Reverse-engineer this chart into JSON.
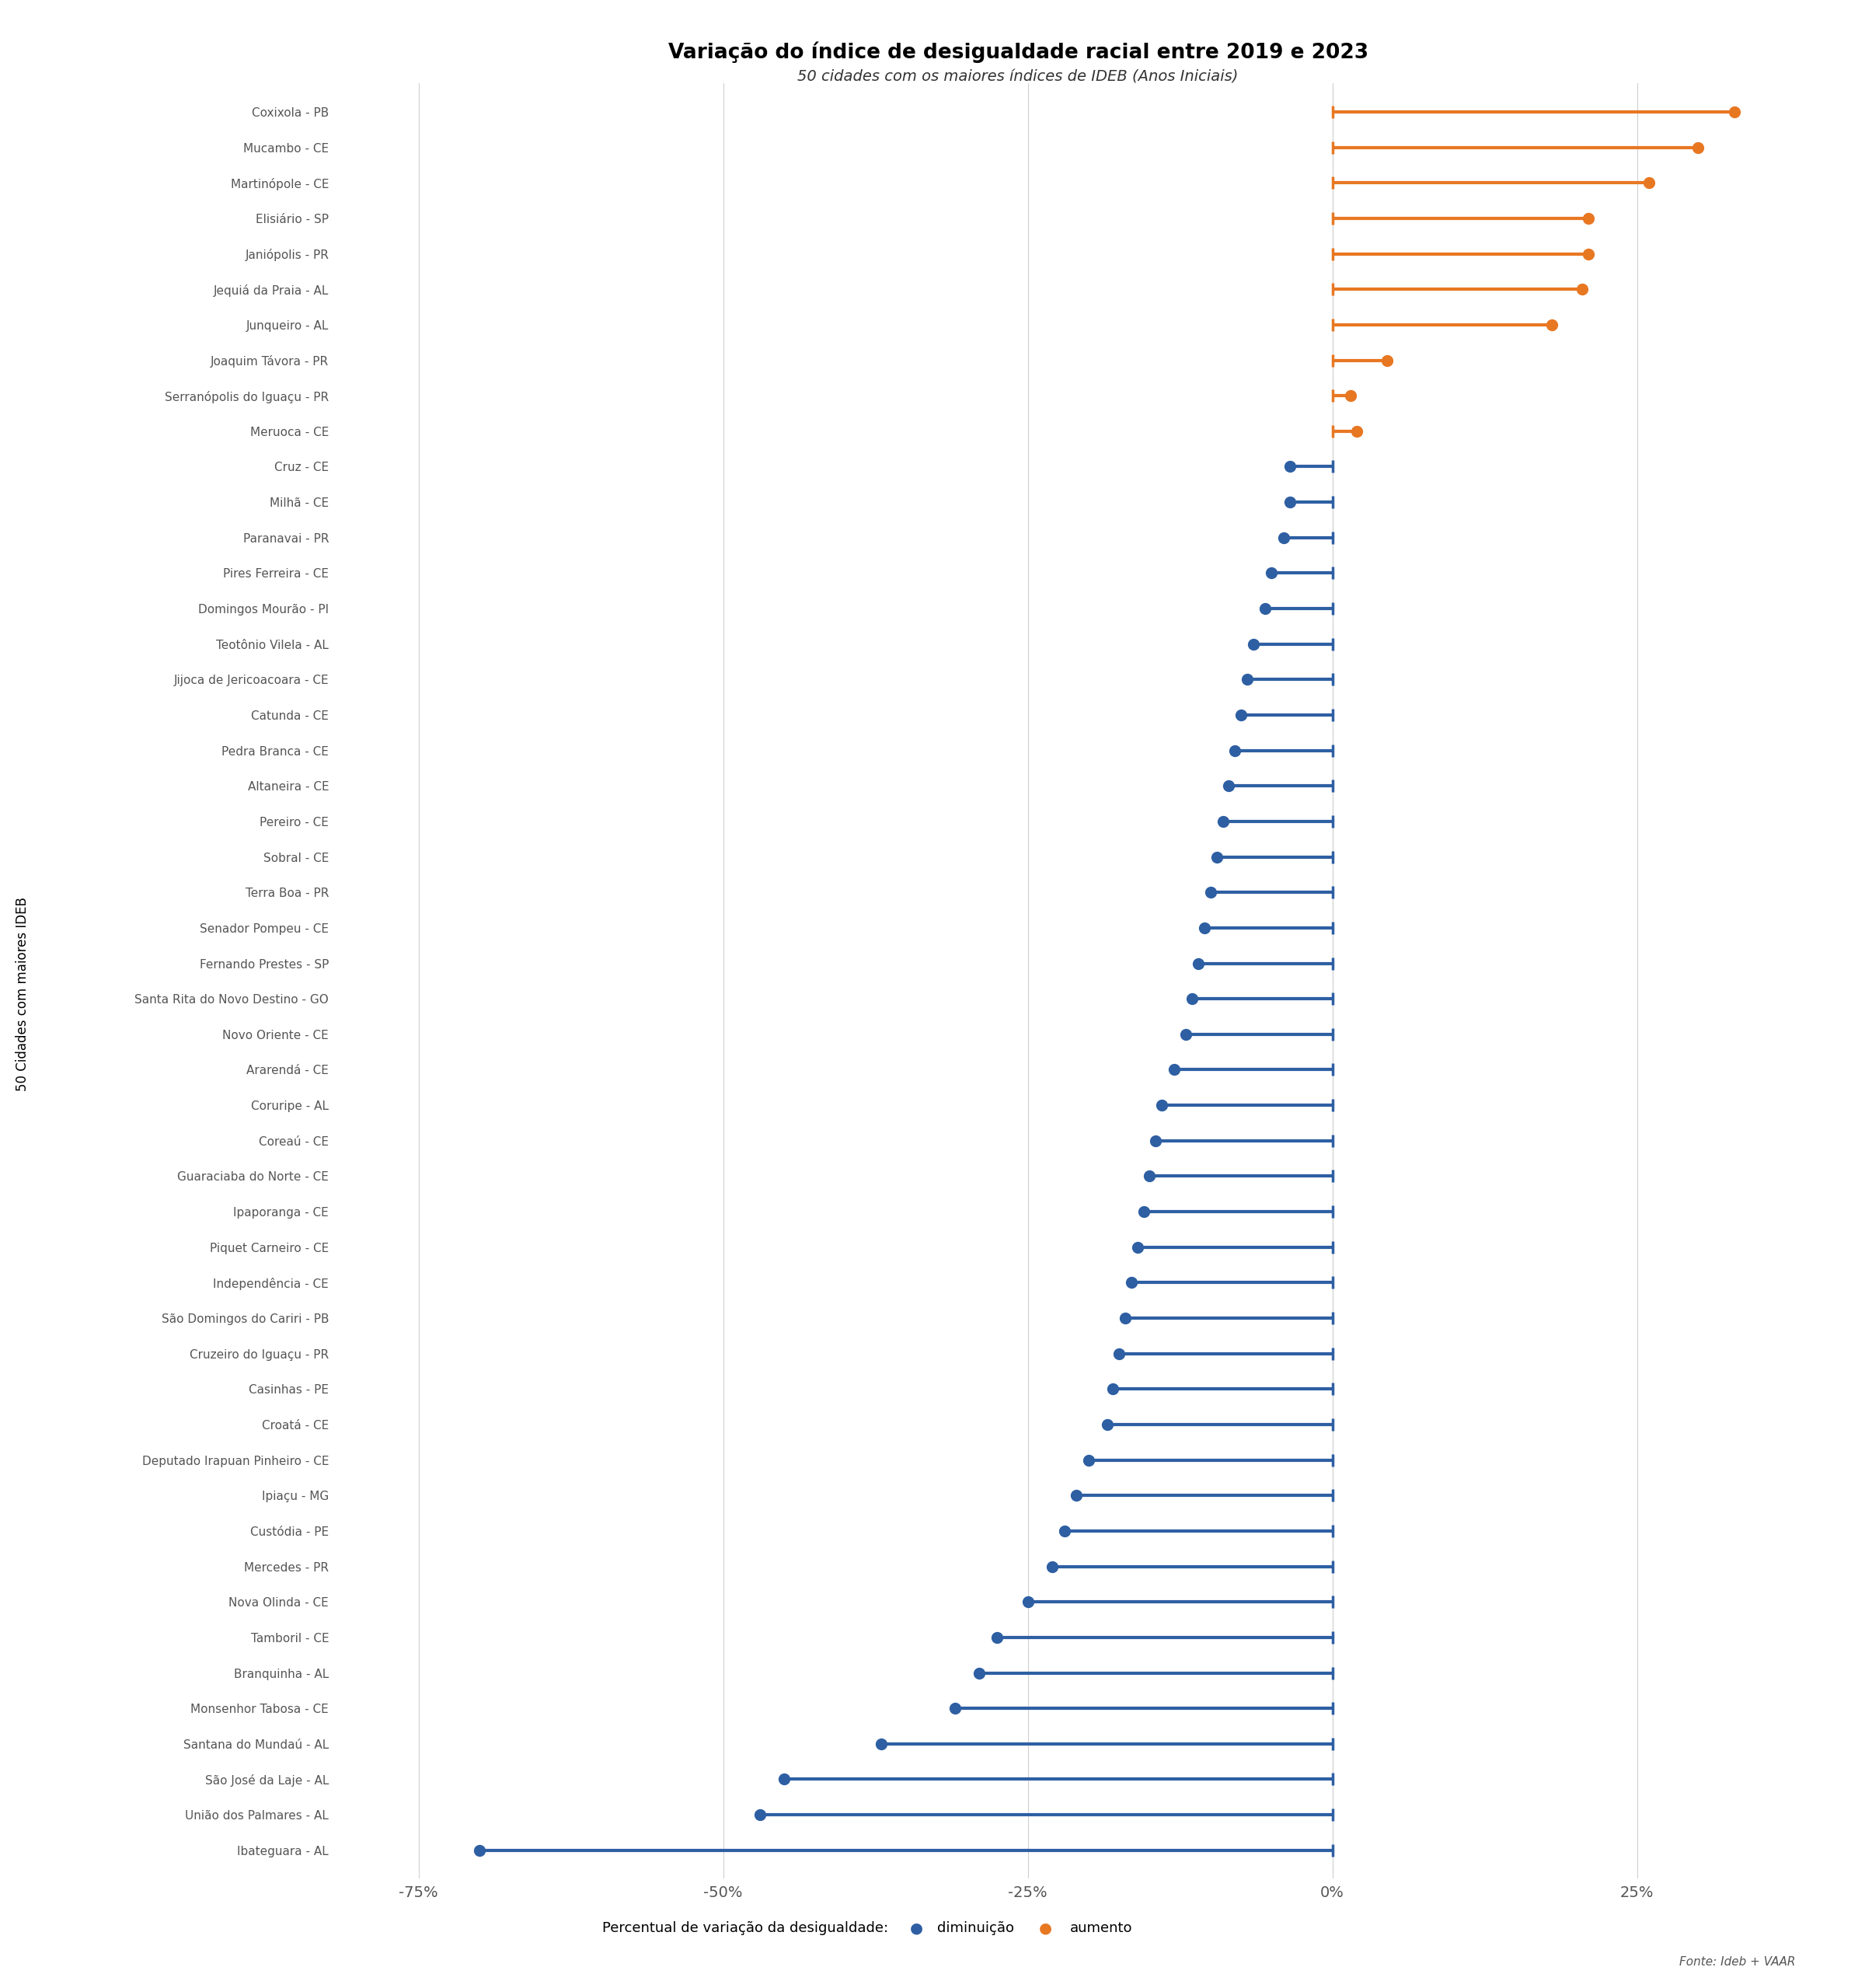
{
  "title": "Variação do índice de desigualdade racial entre 2019 e 2023",
  "subtitle": "50 cidades com os maiores índices de IDEB (Anos Iniciais)",
  "ylabel_rotated": "50 Cidades com maiores IDEB",
  "xlabel": "Percentual de variação da desigualdade:",
  "source": "Fonte: Ideb + VAAR",
  "categories": [
    "Coxixola - PB",
    "Mucambo - CE",
    "Martinópole - CE",
    "Elisiário - SP",
    "Janiópolis - PR",
    "Jequiá da Praia - AL",
    "Junqueiro - AL",
    "Joaquim Távora - PR",
    "Serranópolis do Iguaçu - PR",
    "Meruoca - CE",
    "Cruz - CE",
    "Milhã - CE",
    "Paranavai - PR",
    "Pires Ferreira - CE",
    "Domingos Mourão - PI",
    "Teotônio Vilela - AL",
    "Jijoca de Jericoacoara - CE",
    "Catunda - CE",
    "Pedra Branca - CE",
    "Altaneira - CE",
    "Pereiro - CE",
    "Sobral - CE",
    "Terra Boa - PR",
    "Senador Pompeu - CE",
    "Fernando Prestes - SP",
    "Santa Rita do Novo Destino - GO",
    "Novo Oriente - CE",
    "Ararendá - CE",
    "Coruripe - AL",
    "Coreaú - CE",
    "Guaraciaba do Norte - CE",
    "Ipaporanga - CE",
    "Piquet Carneiro - CE",
    "Independência - CE",
    "São Domingos do Cariri - PB",
    "Cruzeiro do Iguaçu - PR",
    "Casinhas - PE",
    "Croatá - CE",
    "Deputado Irapuan Pinheiro - CE",
    "Ipiaçu - MG",
    "Custódia - PE",
    "Mercedes - PR",
    "Nova Olinda - CE",
    "Tamboril - CE",
    "Branquinha - AL",
    "Monsenhor Tabosa - CE",
    "Santana do Mundaú - AL",
    "São José da Laje - AL",
    "União dos Palmares - AL",
    "Ibateguara - AL"
  ],
  "values": [
    33.0,
    30.0,
    26.0,
    21.0,
    21.0,
    20.5,
    18.0,
    4.5,
    1.5,
    2.0,
    -3.5,
    -3.5,
    -4.0,
    -5.0,
    -5.5,
    -6.5,
    -7.0,
    -7.5,
    -8.0,
    -8.5,
    -9.0,
    -9.5,
    -10.0,
    -10.5,
    -11.0,
    -11.5,
    -12.0,
    -13.0,
    -14.0,
    -14.5,
    -15.0,
    -15.5,
    -16.0,
    -16.5,
    -17.0,
    -17.5,
    -18.0,
    -18.5,
    -20.0,
    -21.0,
    -22.0,
    -23.0,
    -25.0,
    -27.5,
    -29.0,
    -31.0,
    -37.0,
    -45.0,
    -47.0,
    -70.0
  ],
  "color_increase": "#E87722",
  "color_decrease": "#2E5FA3",
  "background_color": "#FFFFFF",
  "grid_color": "#D0D0D0",
  "label_color": "#555555",
  "xticks": [
    -75,
    -50,
    -25,
    0,
    25
  ],
  "xtick_labels": [
    "-75%",
    "-50%",
    "-25%",
    "0%",
    "25%"
  ]
}
